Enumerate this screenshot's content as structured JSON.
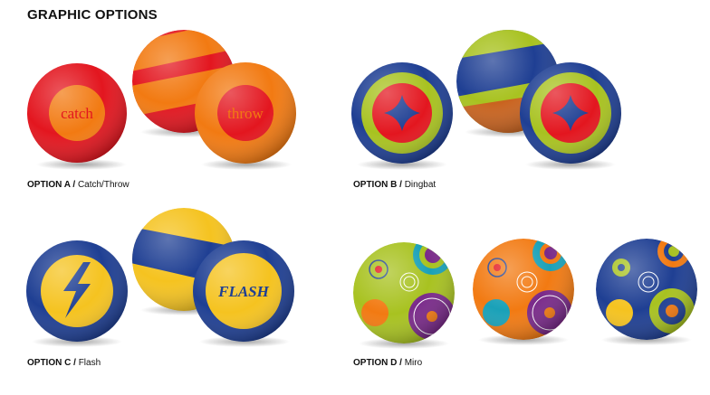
{
  "title": "GRAPHIC OPTIONS",
  "options": [
    {
      "label": "OPTION A /",
      "name": "Catch/Throw",
      "texts": [
        "catch",
        "throw"
      ]
    },
    {
      "label": "OPTION B /",
      "name": "Dingbat"
    },
    {
      "label": "OPTION C /",
      "name": "Flash",
      "texts": [
        "FLASH"
      ]
    },
    {
      "label": "OPTION D /",
      "name": "Miro"
    }
  ],
  "colors": {
    "red": "#e3161f",
    "orange": "#f27a12",
    "lime": "#a8c220",
    "navy": "#1f3f93",
    "yellow": "#f5c320"
  }
}
